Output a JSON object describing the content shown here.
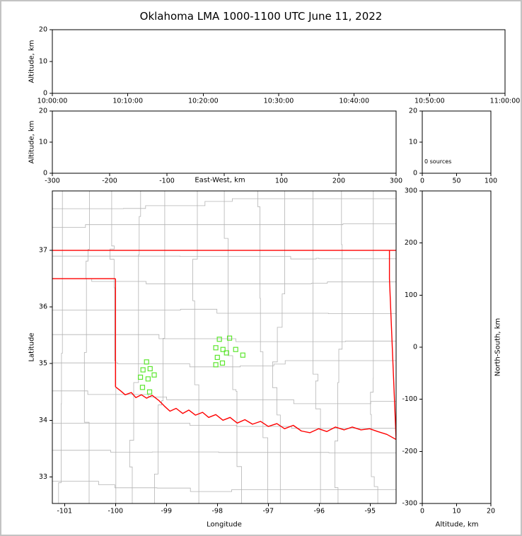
{
  "title": "Oklahoma LMA 1000-1100 UTC June 11, 2022",
  "colors": {
    "frame": "#000000",
    "county_lines": "#b4b4b4",
    "state_border": "#ff0000",
    "station_marker": "#5ce62e"
  },
  "chart_data": [
    {
      "id": "time_height",
      "type": "scatter",
      "ylabel": "Altitude, km",
      "ylim": [
        0,
        20
      ],
      "yticks": [
        0,
        10,
        20
      ],
      "xticks": [
        "10:00:00",
        "10:10:00",
        "10:20:00",
        "10:30:00",
        "10:40:00",
        "10:50:00",
        "11:00:00"
      ],
      "points": []
    },
    {
      "id": "east_west_height",
      "type": "scatter",
      "xlabel": "East-West, km",
      "xlim": [
        -300,
        300
      ],
      "xticks": [
        -300,
        -200,
        -100,
        0,
        100,
        200,
        300
      ],
      "xtick_labels": [
        "-300",
        "-200",
        "-100",
        "",
        "100",
        "200",
        "300"
      ],
      "ylabel": "Altitude, km",
      "ylim": [
        0,
        20
      ],
      "yticks": [
        0,
        10,
        20
      ],
      "points": []
    },
    {
      "id": "source_histogram",
      "type": "bar",
      "xlim": [
        0,
        100
      ],
      "xticks": [
        0,
        50,
        100
      ],
      "ylim": [
        0,
        20
      ],
      "yticks": [
        0,
        10,
        20
      ],
      "annotation": "0 sources",
      "source_count": 0,
      "values": []
    },
    {
      "id": "plan_view_map",
      "type": "scatter",
      "xlabel": "Longitude",
      "ylabel": "Latitude",
      "xlim": [
        -101.24,
        -94.49
      ],
      "ylim": [
        32.53,
        38.05
      ],
      "xticks": [
        -101,
        -100,
        -99,
        -98,
        -97,
        -96,
        -95
      ],
      "yticks": [
        33,
        34,
        35,
        36,
        37
      ],
      "stations": [
        [
          -99.39,
          35.03
        ],
        [
          -99.46,
          34.89
        ],
        [
          -99.32,
          34.91
        ],
        [
          -99.51,
          34.76
        ],
        [
          -99.36,
          34.73
        ],
        [
          -99.24,
          34.8
        ],
        [
          -99.47,
          34.58
        ],
        [
          -99.33,
          34.5
        ],
        [
          -97.96,
          35.43
        ],
        [
          -97.76,
          35.45
        ],
        [
          -98.03,
          35.28
        ],
        [
          -97.89,
          35.25
        ],
        [
          -98.0,
          35.11
        ],
        [
          -97.82,
          35.19
        ],
        [
          -97.64,
          35.25
        ],
        [
          -97.9,
          35.01
        ],
        [
          -98.03,
          34.98
        ],
        [
          -97.5,
          35.15
        ]
      ],
      "state_border": {
        "north_lat": 37.0,
        "panhandle_south_lat": 36.5,
        "panhandle_meridian_lon": -100.0,
        "meridian_lat_range": [
          34.59,
          36.5
        ],
        "east_border": [
          [
            -94.62,
            37.0
          ],
          [
            -94.62,
            36.5
          ],
          [
            -94.49,
            33.66
          ]
        ],
        "red_river": [
          [
            -100.0,
            34.59
          ],
          [
            -99.9,
            34.52
          ],
          [
            -99.81,
            34.45
          ],
          [
            -99.69,
            34.49
          ],
          [
            -99.6,
            34.4
          ],
          [
            -99.49,
            34.45
          ],
          [
            -99.39,
            34.39
          ],
          [
            -99.28,
            34.44
          ],
          [
            -99.15,
            34.35
          ],
          [
            -99.04,
            34.25
          ],
          [
            -98.93,
            34.16
          ],
          [
            -98.81,
            34.21
          ],
          [
            -98.68,
            34.12
          ],
          [
            -98.56,
            34.18
          ],
          [
            -98.43,
            34.09
          ],
          [
            -98.29,
            34.14
          ],
          [
            -98.17,
            34.05
          ],
          [
            -98.03,
            34.1
          ],
          [
            -97.89,
            34.0
          ],
          [
            -97.75,
            34.05
          ],
          [
            -97.61,
            33.95
          ],
          [
            -97.46,
            34.01
          ],
          [
            -97.31,
            33.93
          ],
          [
            -97.15,
            33.98
          ],
          [
            -97.0,
            33.89
          ],
          [
            -96.83,
            33.94
          ],
          [
            -96.68,
            33.85
          ],
          [
            -96.51,
            33.91
          ],
          [
            -96.35,
            33.81
          ],
          [
            -96.18,
            33.78
          ],
          [
            -96.01,
            33.85
          ],
          [
            -95.85,
            33.8
          ],
          [
            -95.68,
            33.88
          ],
          [
            -95.51,
            33.83
          ],
          [
            -95.35,
            33.88
          ],
          [
            -95.18,
            33.83
          ],
          [
            -95.01,
            33.85
          ],
          [
            -94.85,
            33.8
          ],
          [
            -94.67,
            33.75
          ],
          [
            -94.49,
            33.66
          ]
        ]
      }
    },
    {
      "id": "north_south_height",
      "type": "scatter",
      "xlabel": "Altitude, km",
      "xlim": [
        0,
        20
      ],
      "xticks": [
        0,
        10,
        20
      ],
      "ylabel": "North-South, km",
      "ylim": [
        -300,
        300
      ],
      "yticks": [
        -300,
        -200,
        -100,
        0,
        100,
        200,
        300
      ],
      "points": []
    }
  ]
}
